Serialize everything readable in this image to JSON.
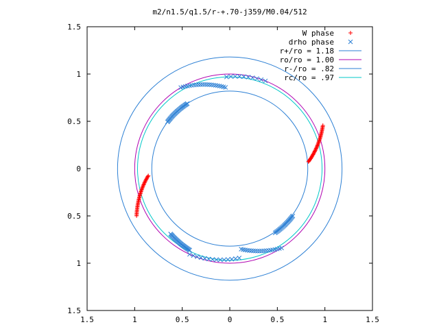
{
  "chart_data": {
    "type": "scatter",
    "title": "m2/n1.5/q1.5/r-+.70-j359/M0.04/512",
    "xlabel": "",
    "ylabel": "",
    "xlim": [
      -1.5,
      1.5
    ],
    "ylim": [
      -1.5,
      1.5
    ],
    "x_ticks": [
      -1.5,
      -1,
      -0.5,
      0,
      0.5,
      1,
      1.5
    ],
    "y_ticks": [
      -1.5,
      -1,
      -0.5,
      0,
      0.5,
      1,
      1.5
    ],
    "x_tick_labels": [
      "1.5",
      "1",
      "0.5",
      "0",
      "0.5",
      "1",
      "1.5"
    ],
    "y_tick_labels": [
      "1.5",
      "1",
      "0.5",
      "0",
      "0.5",
      "1",
      "1.5"
    ],
    "grid": false,
    "legend_position": "top-right",
    "circles": [
      {
        "label": "r+/ro = 1.18",
        "radius": 1.18,
        "color": "#2b7fd4"
      },
      {
        "label": "ro/ro = 1.00",
        "radius": 1.0,
        "color": "#b000b0"
      },
      {
        "label": "r-/ro = .82",
        "radius": 0.82,
        "color": "#2b7fd4"
      },
      {
        "label": "rc/ro = .97",
        "radius": 0.97,
        "color": "#00c8c8"
      }
    ],
    "series": [
      {
        "name": "W phase",
        "marker": "+",
        "color": "#ff0000",
        "arcs": [
          {
            "r_start": 0.83,
            "r_end": 1.08,
            "angle_start_deg": 5,
            "angle_end_deg": 25,
            "count": 40
          },
          {
            "r_start": 0.86,
            "r_end": 1.1,
            "angle_start_deg": 185,
            "angle_end_deg": 207,
            "count": 40
          }
        ]
      },
      {
        "name": "drho phase",
        "marker": "x",
        "color": "#2b7fd4",
        "arcs": [
          {
            "r_start": 0.82,
            "r_end": 0.82,
            "angle_start_deg": 123,
            "angle_end_deg": 143,
            "count": 30
          },
          {
            "r_start": 0.86,
            "r_end": 1.0,
            "angle_start_deg": 93,
            "angle_end_deg": 121,
            "count": 22
          },
          {
            "r_start": 1.0,
            "r_end": 0.97,
            "angle_start_deg": 68,
            "angle_end_deg": 92,
            "count": 10
          },
          {
            "r_start": 0.83,
            "r_end": 0.83,
            "angle_start_deg": 305,
            "angle_end_deg": 323,
            "count": 25
          },
          {
            "r_start": 0.86,
            "r_end": 1.0,
            "angle_start_deg": 278,
            "angle_end_deg": 303,
            "count": 20
          },
          {
            "r_start": 1.0,
            "r_end": 0.95,
            "angle_start_deg": 245,
            "angle_end_deg": 276,
            "count": 14
          },
          {
            "r_start": 0.93,
            "r_end": 0.96,
            "angle_start_deg": 228,
            "angle_end_deg": 244,
            "count": 30
          }
        ]
      }
    ]
  }
}
